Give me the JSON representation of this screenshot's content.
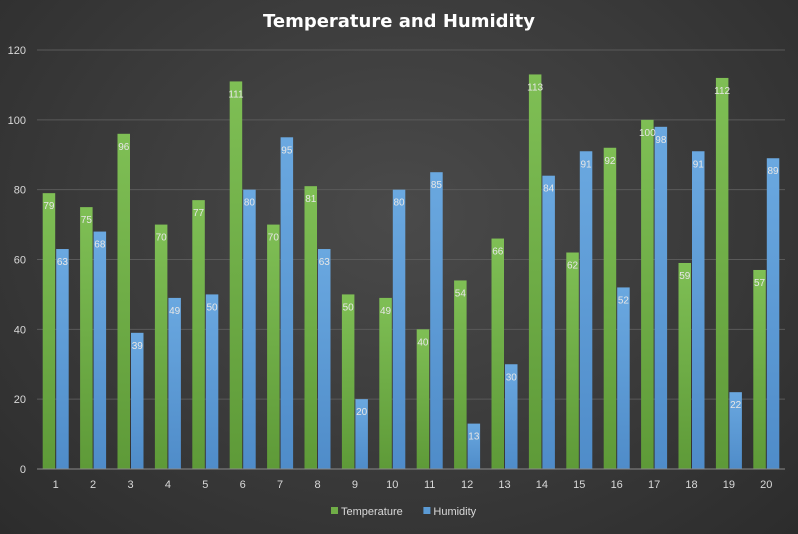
{
  "chart_data": {
    "type": "bar",
    "title": "Temperature and Humidity",
    "xlabel": "",
    "ylabel": "",
    "categories": [
      "1",
      "2",
      "3",
      "4",
      "5",
      "6",
      "7",
      "8",
      "9",
      "10",
      "11",
      "12",
      "13",
      "14",
      "15",
      "16",
      "17",
      "18",
      "19",
      "20"
    ],
    "series": [
      {
        "name": "Temperature",
        "color": "#70ad47",
        "values": [
          79,
          75,
          96,
          70,
          77,
          111,
          70,
          81,
          50,
          49,
          40,
          54,
          66,
          113,
          62,
          92,
          100,
          59,
          112,
          57
        ]
      },
      {
        "name": "Humidity",
        "color": "#5b9bd5",
        "values": [
          63,
          68,
          39,
          49,
          50,
          80,
          95,
          63,
          20,
          80,
          85,
          13,
          30,
          84,
          91,
          52,
          98,
          91,
          22,
          89
        ]
      }
    ],
    "ylim": [
      0,
      120
    ],
    "yticks": [
      0,
      20,
      40,
      60,
      80,
      100,
      120
    ],
    "grid": true,
    "legend_position": "bottom",
    "data_labels": true
  }
}
